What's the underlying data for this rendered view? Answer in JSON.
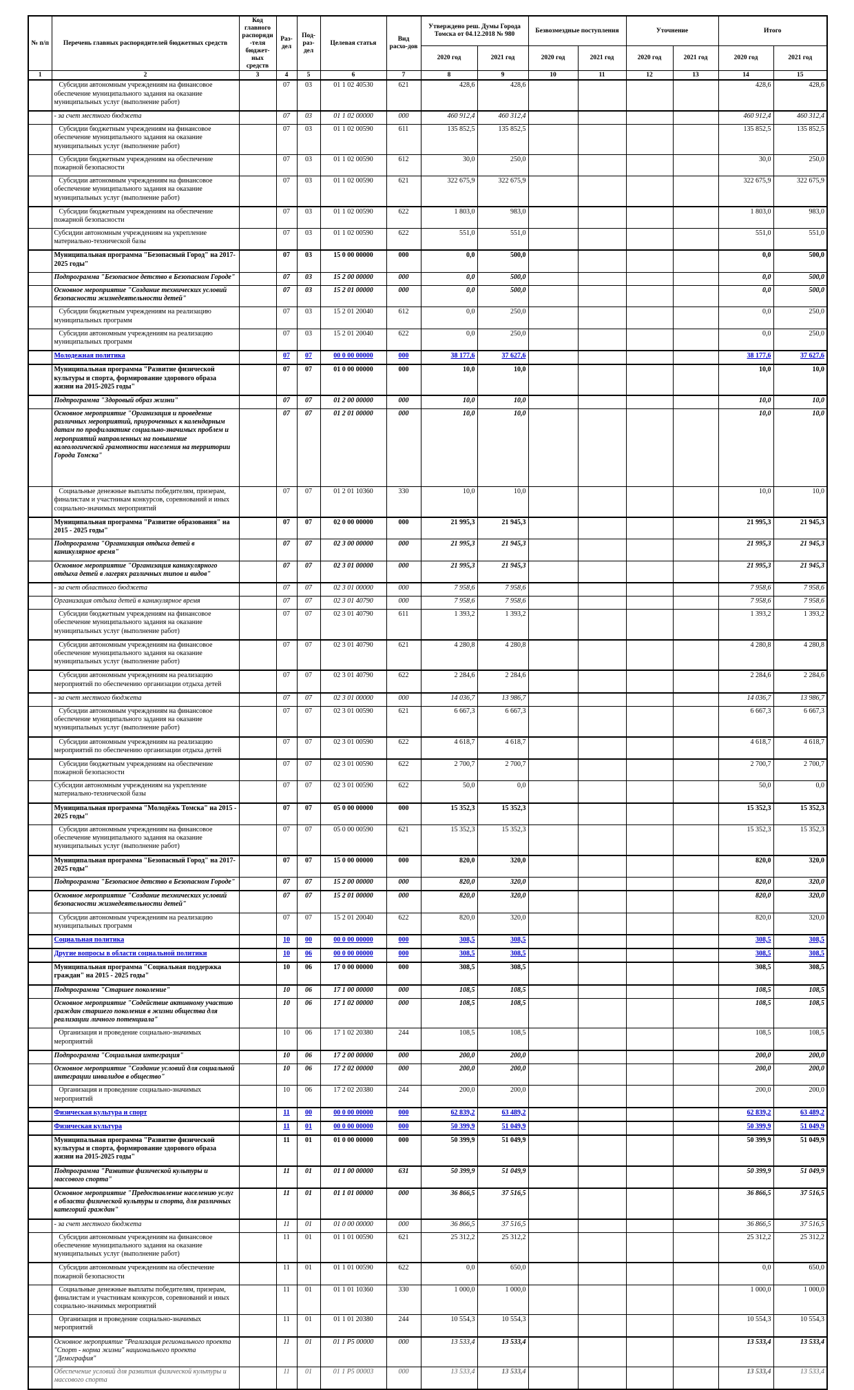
{
  "colors": {
    "section_blue": "#0000C8",
    "border_black": "#000000"
  },
  "header": {
    "no": "№ п/п",
    "list": "Перечень главных распорядителей бюджетных средств",
    "grbs_code": "Код главного распоряди-теля бюджет-ных средств",
    "razdel": "Раз-дел",
    "podrazdel": "Под-раз-дел",
    "target_article": "Целевая статья",
    "expense_type": "Вид расхо-дов",
    "approved": "Утверждено реш. Думы Города Томска от 04.12.2018 № 980",
    "gratuitous": "Безвозмездные поступления",
    "clarification": "Уточнение",
    "total": "Итого",
    "year_2020": "2020 год",
    "year_2021": "2021 год",
    "col_numbers": [
      "1",
      "2",
      "3",
      "4",
      "5",
      "6",
      "7",
      "8",
      "9",
      "10",
      "11",
      "12",
      "13",
      "14",
      "15"
    ]
  },
  "rows": [
    {
      "t": "Субсидии автономным учреждениям на финансовое обеспечение муниципального задания на оказание муниципальных услуг (выполнение работ)",
      "s": "n",
      "ind": 1,
      "rz": "07",
      "pr": "03",
      "cs": "01 1 02 40530",
      "vr": "621",
      "v8": "428,6",
      "v9": "428,6",
      "v14": "428,6",
      "v15": "428,6"
    },
    {
      "t": "- за счет местного бюджета",
      "s": "i",
      "sep": 1,
      "rz": "07",
      "pr": "03",
      "cs": "01 1 02 00000",
      "vr": "000",
      "v8": "460 912,4",
      "v9": "460 312,4",
      "v14": "460 912,4",
      "v15": "460 312,4"
    },
    {
      "t": "Субсидии бюджетным учреждениям на финансовое обеспечение муниципального задания на оказание муниципальных услуг (выполнение работ)",
      "s": "n",
      "ind": 1,
      "rz": "07",
      "pr": "03",
      "cs": "01 1 02 00590",
      "vr": "611",
      "v8": "135 852,5",
      "v9": "135 852,5",
      "v14": "135 852,5",
      "v15": "135 852,5"
    },
    {
      "t": "Субсидии бюджетным учреждениям на обеспечение пожарной безопасности",
      "s": "n",
      "ind": 1,
      "rz": "07",
      "pr": "03",
      "cs": "01 1 02 00590",
      "vr": "612",
      "v8": "30,0",
      "v9": "250,0",
      "v14": "30,0",
      "v15": "250,0"
    },
    {
      "t": "Субсидии автономным учреждениям на финансовое обеспечение муниципального задания на оказание муниципальных услуг (выполнение работ)",
      "s": "n",
      "ind": 1,
      "rz": "07",
      "pr": "03",
      "cs": "01 1 02 00590",
      "vr": "621",
      "v8": "322 675,9",
      "v9": "322 675,9",
      "v14": "322 675,9",
      "v15": "322 675,9"
    },
    {
      "t": "Субсидии бюджетным учреждениям на обеспечение пожарной безопасности",
      "s": "n",
      "ind": 1,
      "sep": 1,
      "rz": "07",
      "pr": "03",
      "cs": "01 1 02 00590",
      "vr": "622",
      "v8": "1 803,0",
      "v9": "983,0",
      "v14": "1 803,0",
      "v15": "983,0"
    },
    {
      "t": "Субсидии автономным учреждениям на укрепление материально-технической базы",
      "s": "n",
      "rz": "07",
      "pr": "03",
      "cs": "01 1 02 00590",
      "vr": "622",
      "v8": "551,0",
      "v9": "551,0",
      "v14": "551,0",
      "v15": "551,0"
    },
    {
      "t": "Муниципальная программа \"Безопасный Город\" на 2017-2025 годы\"",
      "s": "b",
      "sep": 1,
      "rz": "07",
      "pr": "03",
      "cs": "15 0 00 00000",
      "vr": "000",
      "v8": "0,0",
      "v9": "500,0",
      "v14": "0,0",
      "v15": "500,0"
    },
    {
      "t": "Подпрограмма \"Безопасное детство в Безопасном Городе\"",
      "s": "bi",
      "rz": "07",
      "pr": "03",
      "cs": "15 2 00 00000",
      "vr": "000",
      "v8": "0,0",
      "v9": "500,0",
      "v14": "0,0",
      "v15": "500,0"
    },
    {
      "t": "Основное мероприятие \"Создание технических условий безопасности жизнедеятельности детей\"",
      "s": "bi",
      "rz": "07",
      "pr": "03",
      "cs": "15 2 01 00000",
      "vr": "000",
      "v8": "0,0",
      "v9": "500,0",
      "v14": "0,0",
      "v15": "500,0"
    },
    {
      "t": "Субсидии бюджетным учреждениям на реализацию муниципальных программ",
      "s": "n",
      "ind": 1,
      "rz": "07",
      "pr": "03",
      "cs": "15 2 01 20040",
      "vr": "612",
      "v8": "0,0",
      "v9": "250,0",
      "v14": "0,0",
      "v15": "250,0"
    },
    {
      "t": "Субсидии автономным учреждениям на реализацию муниципальных программ",
      "s": "n",
      "ind": 1,
      "rz": "07",
      "pr": "03",
      "cs": "15 2 01 20040",
      "vr": "622",
      "v8": "0,0",
      "v9": "250,0",
      "v14": "0,0",
      "v15": "250,0"
    },
    {
      "t": "Молодежная политика",
      "s": "blue",
      "rz": "07",
      "pr": "07",
      "cs": "00 0 00 00000",
      "vr": "000",
      "v8": "38 177,6",
      "v9": "37 627,6",
      "v14": "38 177,6",
      "v15": "37 627,6"
    },
    {
      "t": "Муниципальная программа \"Развитие физической культуры и спорта, формирование здорового образа жизни на 2015-2025 годы\"",
      "s": "b",
      "rz": "07",
      "pr": "07",
      "cs": "01 0 00 00000",
      "vr": "000",
      "v8": "10,0",
      "v9": "10,0",
      "v14": "10,0",
      "v15": "10,0"
    },
    {
      "t": "Подпрограмма \"Здоровый образ жизни\"",
      "s": "bi",
      "sep": 1,
      "rz": "07",
      "pr": "07",
      "cs": "01 2 00 00000",
      "vr": "000",
      "v8": "10,0",
      "v9": "10,0",
      "v14": "10,0",
      "v15": "10,0"
    },
    {
      "t": "Основное мероприятие \"Организация и проведение различных мероприятий, приуроченных к календарным датам по профилактике социально-значимых проблем и мероприятий направленных на повышение валеологической грамотности населения на территории Города Томска\"",
      "s": "bi",
      "pad2": 1,
      "rz": "07",
      "pr": "07",
      "cs": "01 2 01 00000",
      "vr": "000",
      "v8": "10,0",
      "v9": "10,0",
      "v14": "10,0",
      "v15": "10,0"
    },
    {
      "t": "Социальные денежные выплаты победителям, призерам, финалистам и участникам конкурсов, соревнований и иных социально-значимых мероприятий",
      "s": "n",
      "ind": 1,
      "rz": "07",
      "pr": "07",
      "cs": "01 2 01 10360",
      "vr": "330",
      "v8": "10,0",
      "v9": "10,0",
      "v14": "10,0",
      "v15": "10,0"
    },
    {
      "t": "Муниципальная программа \"Развитие образования\" на 2015 - 2025 годы\"",
      "s": "b",
      "sep": 1,
      "rz": "07",
      "pr": "07",
      "cs": "02 0 00 00000",
      "vr": "000",
      "v8": "21 995,3",
      "v9": "21 945,3",
      "v14": "21 995,3",
      "v15": "21 945,3"
    },
    {
      "t": "Подпрограмма \"Организация отдыха детей в каникулярное время\"",
      "s": "bi",
      "rz": "07",
      "pr": "07",
      "cs": "02 3 00 00000",
      "vr": "000",
      "v8": "21 995,3",
      "v9": "21 945,3",
      "v14": "21 995,3",
      "v15": "21 945,3"
    },
    {
      "t": "Основное мероприятие \"Организация каникулярного отдыха детей в лагерях различных типов и видов\"",
      "s": "bi",
      "rz": "07",
      "pr": "07",
      "cs": "02 3 01 00000",
      "vr": "000",
      "v8": "21 995,3",
      "v9": "21 945,3",
      "v14": "21 995,3",
      "v15": "21 945,3"
    },
    {
      "t": "- за счет областного бюджета",
      "s": "i",
      "sep": 1,
      "rz": "07",
      "pr": "07",
      "cs": "02 3 01 00000",
      "vr": "000",
      "v8": "7 958,6",
      "v9": "7 958,6",
      "v14": "7 958,6",
      "v15": "7 958,6"
    },
    {
      "t": "Организация отдыха детей в каникулярное время",
      "s": "i",
      "rz": "07",
      "pr": "07",
      "cs": "02 3 01 40790",
      "vr": "000",
      "v8": "7 958,6",
      "v9": "7 958,6",
      "v14": "7 958,6",
      "v15": "7 958,6"
    },
    {
      "t": "Субсидии бюджетным учреждениям на финансовое обеспечение муниципального задания на оказание муниципальных услуг (выполнение работ)",
      "s": "n",
      "ind": 1,
      "rz": "07",
      "pr": "07",
      "cs": "02 3 01 40790",
      "vr": "611",
      "v8": "1 393,2",
      "v9": "1 393,2",
      "v14": "1 393,2",
      "v15": "1 393,2"
    },
    {
      "t": "Субсидии автономным учреждениям на финансовое обеспечение муниципального задания на оказание муниципальных услуг (выполнение работ)",
      "s": "n",
      "ind": 1,
      "sep": 1,
      "rz": "07",
      "pr": "07",
      "cs": "02 3 01 40790",
      "vr": "621",
      "v8": "4 280,8",
      "v9": "4 280,8",
      "v14": "4 280,8",
      "v15": "4 280,8"
    },
    {
      "t": "Субсидии автономным учреждениям на реализацию мероприятий по обеспечению организации отдыха детей",
      "s": "n",
      "ind": 1,
      "sep": 1,
      "rz": "07",
      "pr": "07",
      "cs": "02 3 01 40790",
      "vr": "622",
      "v8": "2 284,6",
      "v9": "2 284,6",
      "v14": "2 284,6",
      "v15": "2 284,6"
    },
    {
      "t": "- за счет местного бюджета",
      "s": "i",
      "sep": 1,
      "rz": "07",
      "pr": "07",
      "cs": "02 3 01 00000",
      "vr": "000",
      "v8": "14 036,7",
      "v9": "13 986,7",
      "v14": "14 036,7",
      "v15": "13 986,7"
    },
    {
      "t": "Субсидии автономным учреждениям на финансовое обеспечение муниципального задания на оказание муниципальных услуг (выполнение работ)",
      "s": "n",
      "ind": 1,
      "rz": "07",
      "pr": "07",
      "cs": "02 3 01 00590",
      "vr": "621",
      "v8": "6 667,3",
      "v9": "6 667,3",
      "v14": "6 667,3",
      "v15": "6 667,3"
    },
    {
      "t": "Субсидии автономным учреждениям на реализацию мероприятий по обеспечению организации отдыха детей",
      "s": "n",
      "ind": 1,
      "sep": 1,
      "rz": "07",
      "pr": "07",
      "cs": "02 3 01 00590",
      "vr": "622",
      "v8": "4 618,7",
      "v9": "4 618,7",
      "v14": "4 618,7",
      "v15": "4 618,7"
    },
    {
      "t": "Субсидии бюджетным учреждениям на обеспечение пожарной безопасности",
      "s": "n",
      "ind": 1,
      "sep": 1,
      "rz": "07",
      "pr": "07",
      "cs": "02 3 01 00590",
      "vr": "622",
      "v8": "2 700,7",
      "v9": "2 700,7",
      "v14": "2 700,7",
      "v15": "2 700,7"
    },
    {
      "t": "Субсидии автономным учреждениям на укрепление материально-технической базы",
      "s": "n",
      "rz": "07",
      "pr": "07",
      "cs": "02 3 01 00590",
      "vr": "622",
      "v8": "50,0",
      "v9": "0,0",
      "v14": "50,0",
      "v15": "0,0"
    },
    {
      "t": "Муниципальная программа \"Молодёжь Томска\" на 2015 - 2025 годы\"",
      "s": "b",
      "sep": 1,
      "rz": "07",
      "pr": "07",
      "cs": "05 0 00 00000",
      "vr": "000",
      "v8": "15 352,3",
      "v9": "15 352,3",
      "v14": "15 352,3",
      "v15": "15 352,3"
    },
    {
      "t": "Субсидии автономным учреждениям на финансовое обеспечение муниципального задания на оказание муниципальных услуг (выполнение работ)",
      "s": "n",
      "ind": 1,
      "rz": "07",
      "pr": "07",
      "cs": "05 0 00 00590",
      "vr": "621",
      "v8": "15 352,3",
      "v9": "15 352,3",
      "v14": "15 352,3",
      "v15": "15 352,3"
    },
    {
      "t": "Муниципальная программа \"Безопасный Город\" на 2017-2025 годы\"",
      "s": "b",
      "sep": 1,
      "rz": "07",
      "pr": "07",
      "cs": "15 0 00 00000",
      "vr": "000",
      "v8": "820,0",
      "v9": "320,0",
      "v14": "820,0",
      "v15": "320,0"
    },
    {
      "t": "Подпрограмма \"Безопасное детство в Безопасном Городе\"",
      "s": "bi",
      "rz": "07",
      "pr": "07",
      "cs": "15 2 00 00000",
      "vr": "000",
      "v8": "820,0",
      "v9": "320,0",
      "v14": "820,0",
      "v15": "320,0"
    },
    {
      "t": "Основное мероприятие \"Создание технических условий безопасности жизнедеятельности детей\"",
      "s": "bi",
      "sep": 1,
      "rz": "07",
      "pr": "07",
      "cs": "15 2 01 00000",
      "vr": "000",
      "v8": "820,0",
      "v9": "320,0",
      "v14": "820,0",
      "v15": "320,0"
    },
    {
      "t": "Субсидии автономным учреждениям на реализацию муниципальных программ",
      "s": "n",
      "ind": 1,
      "rz": "07",
      "pr": "07",
      "cs": "15 2 01 20040",
      "vr": "622",
      "v8": "820,0",
      "v9": "320,0",
      "v14": "820,0",
      "v15": "320,0"
    },
    {
      "t": "Социальная политика",
      "s": "blue",
      "rz": "10",
      "pr": "00",
      "cs": "00 0 00 00000",
      "vr": "000",
      "v8": "308,5",
      "v9": "308,5",
      "v14": "308,5",
      "v15": "308,5"
    },
    {
      "t": "Другие вопросы в области социальной политики",
      "s": "blue",
      "rz": "10",
      "pr": "06",
      "cs": "00 0 00 00000",
      "vr": "000",
      "v8": "308,5",
      "v9": "308,5",
      "v14": "308,5",
      "v15": "308,5"
    },
    {
      "t": "Муниципальная программа \"Социальная поддержка граждан\" на 2015 - 2025 годы\"",
      "s": "b",
      "rz": "10",
      "pr": "06",
      "cs": "17 0 00 00000",
      "vr": "000",
      "v8": "308,5",
      "v9": "308,5",
      "v14": "308,5",
      "v15": "308,5"
    },
    {
      "t": "Подпрограмма \"Старшее поколение\"",
      "s": "bi",
      "sep": 1,
      "rz": "10",
      "pr": "06",
      "cs": "17 1 00 00000",
      "vr": "000",
      "v8": "108,5",
      "v9": "108,5",
      "v14": "108,5",
      "v15": "108,5"
    },
    {
      "t": "Основное мероприятие \"Содействие активному участию граждан старшего поколения в жизни общества для реализации личного потенциала\"",
      "s": "bi",
      "rz": "10",
      "pr": "06",
      "cs": "17 1 02 00000",
      "vr": "000",
      "v8": "108,5",
      "v9": "108,5",
      "v14": "108,5",
      "v15": "108,5"
    },
    {
      "t": "Организация и проведение социально-значимых мероприятий",
      "s": "n",
      "ind": 1,
      "rz": "10",
      "pr": "06",
      "cs": "17 1 02 20380",
      "vr": "244",
      "v8": "108,5",
      "v9": "108,5",
      "v14": "108,5",
      "v15": "108,5"
    },
    {
      "t": "Подпрограмма \"Социальная интеграция\"",
      "s": "bi",
      "sep": 1,
      "rz": "10",
      "pr": "06",
      "cs": "17 2 00 00000",
      "vr": "000",
      "v8": "200,0",
      "v9": "200,0",
      "v14": "200,0",
      "v15": "200,0"
    },
    {
      "t": "Основное мероприятие \"Создание условий для социальной интеграции инвалидов в общество\"",
      "s": "bi",
      "rz": "10",
      "pr": "06",
      "cs": "17 2 02 00000",
      "vr": "000",
      "v8": "200,0",
      "v9": "200,0",
      "v14": "200,0",
      "v15": "200,0"
    },
    {
      "t": "Организация и проведение социально-значимых мероприятий",
      "s": "n",
      "ind": 1,
      "rz": "10",
      "pr": "06",
      "cs": "17 2 02 20380",
      "vr": "244",
      "v8": "200,0",
      "v9": "200,0",
      "v14": "200,0",
      "v15": "200,0"
    },
    {
      "t": "Физическая культура и спорт",
      "s": "blue",
      "rz": "11",
      "pr": "00",
      "cs": "00 0 00 00000",
      "vr": "000",
      "v8": "62 839,2",
      "v9": "63 489,2",
      "v14": "62 839,2",
      "v15": "63 489,2"
    },
    {
      "t": "Физическая культура",
      "s": "blue",
      "rz": "11",
      "pr": "01",
      "cs": "00 0 00 00000",
      "vr": "000",
      "v8": "50 399,9",
      "v9": "51 049,9",
      "v14": "50 399,9",
      "v15": "51 049,9"
    },
    {
      "t": "Муниципальная программа \"Развитие физической культуры и спорта, формирование здорового образа жизни на 2015-2025 годы\"",
      "s": "b",
      "rz": "11",
      "pr": "01",
      "cs": "01 0 00 00000",
      "vr": "000",
      "v8": "50 399,9",
      "v9": "51 049,9",
      "v14": "50 399,9",
      "v15": "51 049,9"
    },
    {
      "t": "Подпрограмма \"Развитие физической культуры и массового спорта\"",
      "s": "bi",
      "sep": 1,
      "rz": "11",
      "pr": "01",
      "cs": "01 1 00 00000",
      "vr": "631",
      "v8": "50 399,9",
      "v9": "51 049,9",
      "v14": "50 399,9",
      "v15": "51 049,9"
    },
    {
      "t": "Основное мероприятие \"Предоставление населению услуг в области физической культуры и спорта, для различных категорий граждан\"",
      "s": "bi",
      "sep": 1,
      "rz": "11",
      "pr": "01",
      "cs": "01 1 01 00000",
      "vr": "000",
      "v8": "36 866,5",
      "v9": "37 516,5",
      "v14": "36 866,5",
      "v15": "37 516,5"
    },
    {
      "t": "- за счет местного бюджета",
      "s": "i",
      "sep": 1,
      "rz": "11",
      "pr": "01",
      "cs": "01 0 00 00000",
      "vr": "000",
      "v8": "36 866,5",
      "v9": "37 516,5",
      "v14": "36 866,5",
      "v15": "37 516,5"
    },
    {
      "t": "Субсидии автономным учреждениям на финансовое обеспечение муниципального задания на оказание муниципальных услуг (выполнение работ)",
      "s": "n",
      "ind": 1,
      "rz": "11",
      "pr": "01",
      "cs": "01 1 01 00590",
      "vr": "621",
      "v8": "25 312,2",
      "v9": "25 312,2",
      "v14": "25 312,2",
      "v15": "25 312,2"
    },
    {
      "t": "Субсидии автономным учреждениям на обеспечение пожарной безопасности",
      "s": "n",
      "ind": 1,
      "sep": 1,
      "rz": "11",
      "pr": "01",
      "cs": "01 1 01 00590",
      "vr": "622",
      "v8": "0,0",
      "v9": "650,0",
      "v14": "0,0",
      "v15": "650,0"
    },
    {
      "t": "Социальные денежные выплаты победителям, призерам, финалистам и участникам конкурсов, соревнований и иных социально-значимых мероприятий",
      "s": "n",
      "ind": 1,
      "rz": "11",
      "pr": "01",
      "cs": "01 1 01 10360",
      "vr": "330",
      "v8": "1 000,0",
      "v9": "1 000,0",
      "v14": "1 000,0",
      "v15": "1 000,0"
    },
    {
      "t": "Организация и проведение социально-значимых мероприятий",
      "s": "n",
      "ind": 1,
      "rz": "11",
      "pr": "01",
      "cs": "01 1 01 20380",
      "vr": "244",
      "v8": "10 554,3",
      "v9": "10 554,3",
      "v14": "10 554,3",
      "v15": "10 554,3"
    },
    {
      "t": "Основное мероприятие \"Реализация регионального проекта \"Спорт - норма жизни\" национального проекта \"Демография\"",
      "s": "i",
      "sep": 1,
      "rz": "11",
      "pr": "01",
      "cs": "01 1 P5 00000",
      "vr": "000",
      "v8": "13 533,4",
      "v9": "13 533,4",
      "v14": "13 533,4",
      "v15": "13 533,4",
      "bv": [
        "v9",
        "v14",
        "v15"
      ]
    },
    {
      "t": "Обеспечение условий для развития физической культуры и массового спорта",
      "s": "i",
      "muted": 1,
      "rz": "11",
      "pr": "01",
      "cs": "01 1 P5 00003",
      "vr": "000",
      "v8": "13 533,4",
      "v9": "13 533,4",
      "v14": "13 533,4",
      "v15": "13 533,4",
      "bv": [
        "v9",
        "v14"
      ]
    }
  ]
}
